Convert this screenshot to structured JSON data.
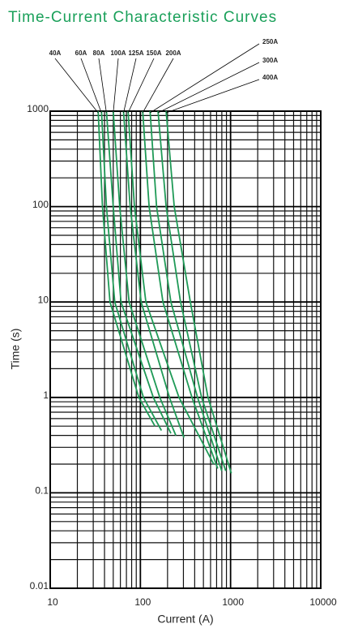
{
  "chart_data": {
    "type": "line",
    "title": "Time-Current Characteristic Curves",
    "xlabel": "Current (A)",
    "ylabel": "Time (s)",
    "xlog": true,
    "ylog": true,
    "grid": true,
    "minor_grid": true,
    "xlim": [
      10,
      10000
    ],
    "ylim": [
      0.01,
      1000
    ],
    "xticks": [
      10,
      100,
      1000,
      10000
    ],
    "yticks": [
      1000,
      100,
      10,
      1,
      0.1,
      0.01
    ],
    "series": [
      {
        "name": "40A",
        "color": "#1f9a57",
        "x": [
          34,
          38,
          46,
          96,
          145
        ],
        "values": [
          1000,
          100,
          10,
          1,
          0.5
        ]
      },
      {
        "name": "60A",
        "color": "#1f9a57",
        "x": [
          37,
          42,
          52,
          108,
          171
        ],
        "values": [
          1000,
          100,
          10,
          1,
          0.45
        ]
      },
      {
        "name": "80A",
        "color": "#1f9a57",
        "x": [
          42,
          50,
          61,
          139,
          218
        ],
        "values": [
          1000,
          100,
          10,
          1,
          0.42
        ]
      },
      {
        "name": "100A",
        "color": "#1f9a57",
        "x": [
          50,
          59,
          75,
          164,
          247
        ],
        "values": [
          1000,
          100,
          10,
          1,
          0.4
        ]
      },
      {
        "name": "125A",
        "color": "#1f9a57",
        "x": [
          65,
          77,
          102,
          210,
          304
        ],
        "values": [
          1000,
          100,
          10,
          1,
          0.38
        ]
      },
      {
        "name": "150A",
        "color": "#1f9a57",
        "x": [
          73,
          86,
          115,
          268,
          650
        ],
        "values": [
          1000,
          100,
          10,
          1,
          0.2
        ]
      },
      {
        "name": "200A",
        "color": "#1f9a57",
        "x": [
          106,
          125,
          178,
          373,
          720
        ],
        "values": [
          1000,
          100,
          10,
          1,
          0.18
        ]
      },
      {
        "name": "250A",
        "color": "#1f9a57",
        "x": [
          128,
          151,
          218,
          430,
          798
        ],
        "values": [
          1000,
          100,
          10,
          1,
          0.17
        ]
      },
      {
        "name": "300A",
        "color": "#1f9a57",
        "x": [
          157,
          193,
          279,
          477,
          884
        ],
        "values": [
          1000,
          100,
          10,
          1,
          0.17
        ]
      },
      {
        "name": "400A",
        "color": "#1f9a57",
        "x": [
          193,
          237,
          358,
          562,
          1020
        ],
        "values": [
          1000,
          100,
          10,
          1,
          0.16
        ]
      }
    ]
  }
}
